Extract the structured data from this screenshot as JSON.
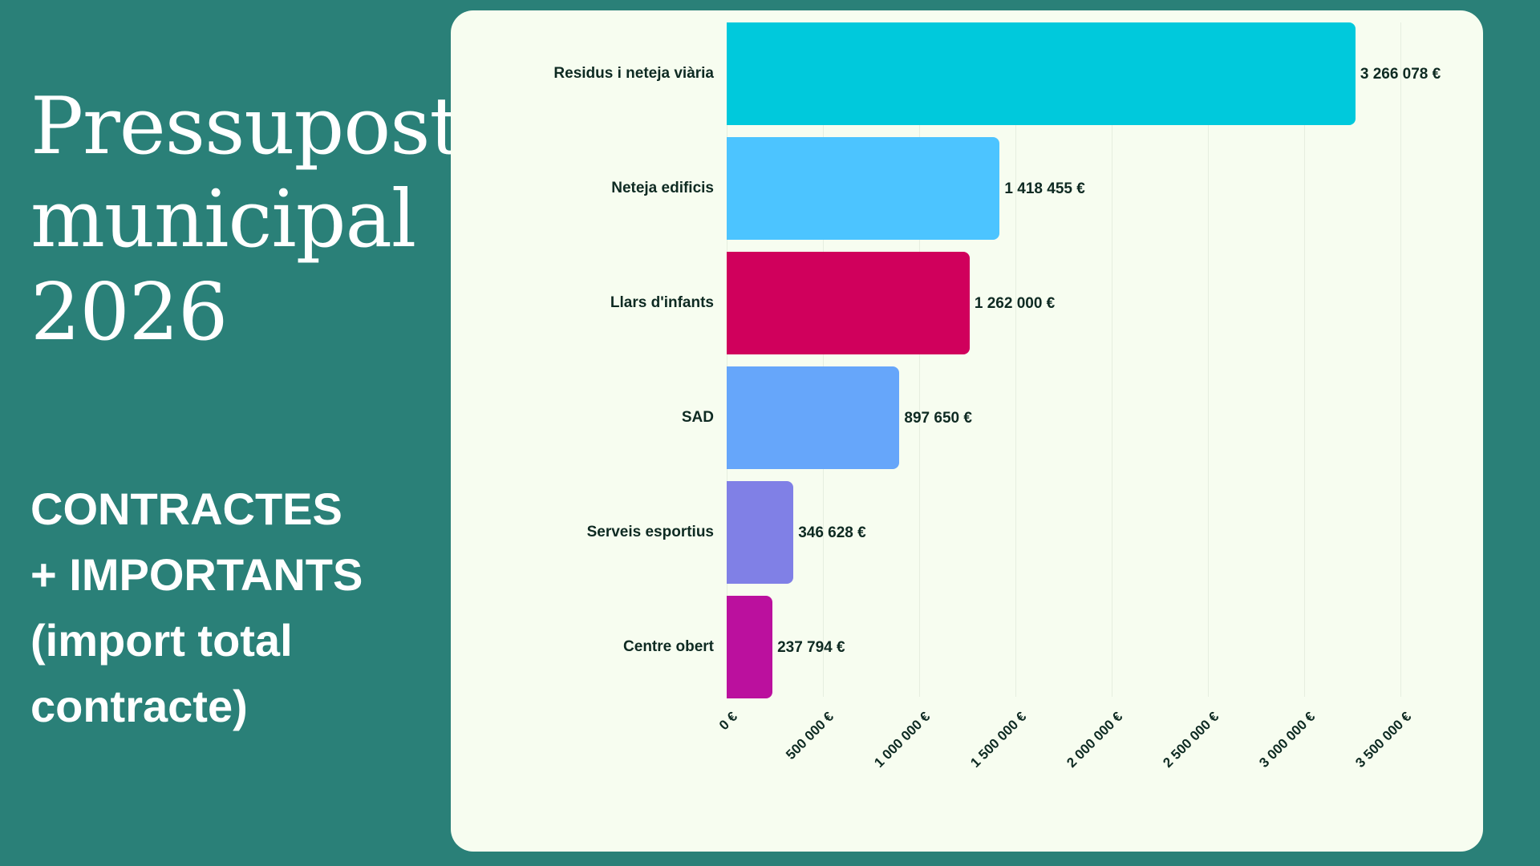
{
  "title_lines": [
    "Pressupost",
    "municipal",
    "2026"
  ],
  "subtitle_lines": [
    "CONTRACTES",
    "+ IMPORTANTS",
    "(import total",
    "contracte)"
  ],
  "chart_data": {
    "type": "bar",
    "orientation": "horizontal",
    "categories": [
      "Residus i neteja viària",
      "Neteja edificis",
      "Llars d'infants",
      "SAD",
      "Serveis esportius",
      "Centre obert"
    ],
    "values": [
      3266078,
      1418455,
      1262000,
      897650,
      346628,
      237794
    ],
    "value_labels": [
      "3 266 078 €",
      "1 418 455 €",
      "1 262 000 €",
      "897 650 €",
      "346 628 €",
      "237 794 €"
    ],
    "colors": [
      "#00c9dc",
      "#4cc4ff",
      "#d0005c",
      "#66a6fa",
      "#8080e6",
      "#bb109e"
    ],
    "xlim": [
      0,
      3500000
    ],
    "x_ticks": [
      0,
      500000,
      1000000,
      1500000,
      2000000,
      2500000,
      3000000,
      3500000
    ],
    "x_tick_labels": [
      "0 €",
      "500 000 €",
      "1 000 000 €",
      "1 500 000 €",
      "2 000 000 €",
      "2 500 000 €",
      "3 000 000 €",
      "3 500 000 €"
    ],
    "grid": true,
    "xlabel": "",
    "ylabel": "",
    "title": ""
  }
}
